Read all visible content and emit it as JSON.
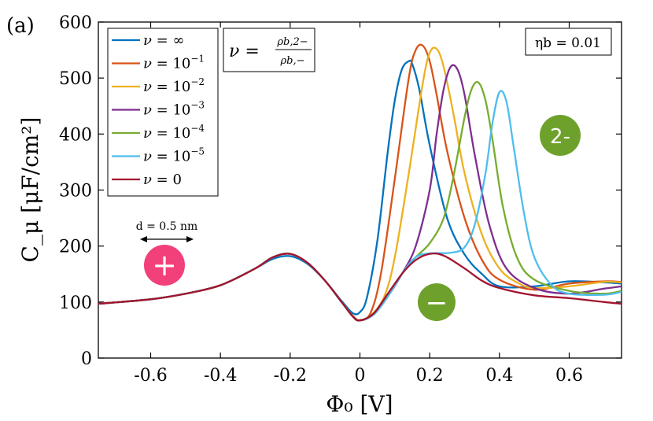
{
  "panel_label": "(a)",
  "chart_data": {
    "type": "line",
    "xlabel": "Φ₀ [V]",
    "ylabel": "C_μ [μF/cm²]",
    "xlim": [
      -0.75,
      0.75
    ],
    "ylim": [
      0,
      600
    ],
    "xticks": [
      -0.6,
      -0.4,
      -0.2,
      0,
      0.2,
      0.4,
      0.6
    ],
    "xtick_labels": [
      "-0.6",
      "-0.4",
      "-0.2",
      "0",
      "0.2",
      "0.4",
      "0.6"
    ],
    "yticks": [
      0,
      100,
      200,
      300,
      400,
      500,
      600
    ],
    "ytick_labels": [
      "0",
      "100",
      "200",
      "300",
      "400",
      "500",
      "600"
    ],
    "series": [
      {
        "name": "ν = ∞",
        "color": "#0072BD",
        "x": [
          -0.75,
          -0.6,
          -0.5,
          -0.4,
          -0.3,
          -0.25,
          -0.2,
          -0.15,
          -0.1,
          -0.05,
          -0.02,
          0,
          0.02,
          0.05,
          0.08,
          0.1,
          0.12,
          0.14,
          0.15,
          0.17,
          0.2,
          0.25,
          0.3,
          0.35,
          0.4,
          0.5,
          0.6,
          0.7,
          0.75
        ],
        "y": [
          97,
          105,
          115,
          130,
          160,
          177,
          182,
          168,
          138,
          100,
          80,
          82,
          108,
          210,
          370,
          460,
          515,
          530,
          525,
          480,
          380,
          250,
          185,
          150,
          128,
          128,
          137,
          135,
          133
        ]
      },
      {
        "name": "ν = 10⁻¹",
        "color": "#D95319",
        "x": [
          -0.75,
          -0.6,
          -0.5,
          -0.4,
          -0.3,
          -0.25,
          -0.2,
          -0.15,
          -0.1,
          -0.05,
          -0.02,
          0,
          0.03,
          0.06,
          0.1,
          0.14,
          0.16,
          0.18,
          0.2,
          0.22,
          0.25,
          0.3,
          0.35,
          0.4,
          0.5,
          0.6,
          0.7,
          0.75
        ],
        "y": [
          97,
          105,
          115,
          130,
          160,
          180,
          186,
          170,
          138,
          98,
          75,
          68,
          80,
          150,
          320,
          500,
          550,
          558,
          530,
          470,
          370,
          250,
          175,
          140,
          122,
          133,
          137,
          136
        ]
      },
      {
        "name": "ν = 10⁻²",
        "color": "#EDB120",
        "x": [
          -0.75,
          -0.6,
          -0.5,
          -0.4,
          -0.3,
          -0.25,
          -0.2,
          -0.15,
          -0.1,
          -0.05,
          -0.02,
          0,
          0.03,
          0.07,
          0.1,
          0.14,
          0.18,
          0.2,
          0.22,
          0.24,
          0.27,
          0.3,
          0.35,
          0.4,
          0.45,
          0.5,
          0.6,
          0.7,
          0.75
        ],
        "y": [
          97,
          105,
          115,
          130,
          160,
          180,
          186,
          170,
          138,
          98,
          74,
          67,
          75,
          110,
          180,
          330,
          490,
          545,
          552,
          520,
          430,
          330,
          220,
          160,
          135,
          125,
          128,
          136,
          135
        ]
      },
      {
        "name": "ν = 10⁻³",
        "color": "#7E2F8E",
        "x": [
          -0.75,
          -0.6,
          -0.5,
          -0.4,
          -0.3,
          -0.25,
          -0.2,
          -0.15,
          -0.1,
          -0.05,
          -0.02,
          0,
          0.04,
          0.08,
          0.12,
          0.16,
          0.2,
          0.22,
          0.24,
          0.26,
          0.28,
          0.3,
          0.33,
          0.37,
          0.42,
          0.5,
          0.6,
          0.7,
          0.75
        ],
        "y": [
          97,
          105,
          115,
          130,
          160,
          180,
          186,
          170,
          138,
          98,
          74,
          67,
          78,
          110,
          150,
          200,
          300,
          400,
          480,
          520,
          515,
          470,
          360,
          240,
          160,
          125,
          115,
          124,
          128
        ]
      },
      {
        "name": "ν = 10⁻⁴",
        "color": "#77AC30",
        "x": [
          -0.75,
          -0.6,
          -0.5,
          -0.4,
          -0.3,
          -0.25,
          -0.2,
          -0.15,
          -0.1,
          -0.05,
          -0.02,
          0,
          0.04,
          0.08,
          0.12,
          0.16,
          0.2,
          0.24,
          0.27,
          0.3,
          0.32,
          0.34,
          0.36,
          0.38,
          0.41,
          0.45,
          0.5,
          0.6,
          0.7,
          0.75
        ],
        "y": [
          97,
          105,
          115,
          130,
          160,
          180,
          186,
          170,
          138,
          98,
          74,
          67,
          78,
          110,
          150,
          180,
          205,
          250,
          330,
          430,
          480,
          492,
          460,
          390,
          270,
          180,
          140,
          120,
          115,
          120
        ]
      },
      {
        "name": "ν = 10⁻⁵",
        "color": "#4DBEEE",
        "x": [
          -0.75,
          -0.6,
          -0.5,
          -0.4,
          -0.3,
          -0.25,
          -0.2,
          -0.15,
          -0.1,
          -0.05,
          -0.02,
          0,
          0.04,
          0.08,
          0.12,
          0.16,
          0.2,
          0.26,
          0.3,
          0.33,
          0.36,
          0.38,
          0.4,
          0.42,
          0.44,
          0.47,
          0.5,
          0.55,
          0.6,
          0.7,
          0.75
        ],
        "y": [
          97,
          105,
          115,
          130,
          160,
          180,
          186,
          170,
          138,
          98,
          74,
          67,
          78,
          110,
          150,
          180,
          187,
          188,
          198,
          240,
          330,
          420,
          475,
          458,
          380,
          260,
          180,
          130,
          115,
          113,
          118
        ]
      },
      {
        "name": "ν = 0",
        "color": "#A2142F",
        "x": [
          -0.75,
          -0.6,
          -0.5,
          -0.4,
          -0.3,
          -0.25,
          -0.2,
          -0.15,
          -0.1,
          -0.05,
          -0.02,
          0,
          0.04,
          0.08,
          0.12,
          0.16,
          0.2,
          0.24,
          0.3,
          0.35,
          0.4,
          0.5,
          0.6,
          0.7,
          0.75
        ],
        "y": [
          97,
          105,
          115,
          130,
          160,
          180,
          186,
          170,
          138,
          98,
          74,
          67,
          80,
          115,
          150,
          175,
          186,
          183,
          160,
          138,
          125,
          112,
          107,
          100,
          97
        ]
      }
    ]
  },
  "legend": {
    "entries": [
      {
        "prefix": "ν = ",
        "base": "∞",
        "exp": ""
      },
      {
        "prefix": "ν = ",
        "base": "10",
        "exp": "−1"
      },
      {
        "prefix": "ν = ",
        "base": "10",
        "exp": "−2"
      },
      {
        "prefix": "ν = ",
        "base": "10",
        "exp": "−3"
      },
      {
        "prefix": "ν = ",
        "base": "10",
        "exp": "−4"
      },
      {
        "prefix": "ν = ",
        "base": "10",
        "exp": "−5"
      },
      {
        "prefix": "ν = ",
        "base": "0",
        "exp": ""
      }
    ]
  },
  "annotations": {
    "ratio_lhs": "ν =",
    "ratio_num": "ρb,2−",
    "ratio_den": "ρb,−",
    "eta": "ηb = 0.01",
    "distance": "d = 0.5 nm",
    "ion_plus": "+",
    "ion_minus": "−",
    "ion_divalent": "2-",
    "ion_plus_color": "#F2407A",
    "ion_minus_color": "#6EA12B",
    "ion_divalent_color": "#6EA12B"
  }
}
